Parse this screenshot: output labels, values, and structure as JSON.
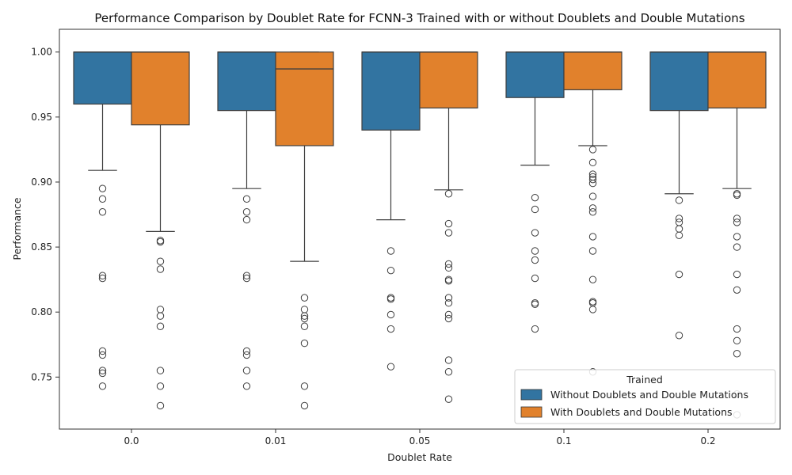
{
  "chart_data": {
    "type": "box",
    "title": "Performance Comparison by Doublet Rate for FCNN-3 Trained with or without Doublets and Double Mutations",
    "xlabel": "Doublet Rate",
    "ylabel": "Performance",
    "categories": [
      "0.0",
      "0.01",
      "0.05",
      "0.1",
      "0.2"
    ],
    "ylim": [
      0.71,
      1.0175
    ],
    "yticks": [
      0.75,
      0.8,
      0.85,
      0.9,
      0.95,
      1.0
    ],
    "ytick_labels": [
      "0.75",
      "0.80",
      "0.85",
      "0.90",
      "0.95",
      "1.00"
    ],
    "grid": false,
    "legend": {
      "title": "Trained",
      "placement": "lower-right",
      "entries": [
        "Without Doublets and Double Mutations",
        "With Doublets and Double Mutations"
      ]
    },
    "series": [
      {
        "name": "Without Doublets and Double Mutations",
        "color": "#3274a1",
        "boxes": [
          {
            "q1": 0.96,
            "median": 1.0,
            "q3": 1.0,
            "whisker_low": 0.909,
            "whisker_high": 1.0,
            "outliers": [
              0.895,
              0.887,
              0.877,
              0.828,
              0.826,
              0.77,
              0.767,
              0.755,
              0.753,
              0.743
            ]
          },
          {
            "q1": 0.955,
            "median": 1.0,
            "q3": 1.0,
            "whisker_low": 0.895,
            "whisker_high": 1.0,
            "outliers": [
              0.887,
              0.877,
              0.871,
              0.828,
              0.826,
              0.77,
              0.767,
              0.755,
              0.743
            ]
          },
          {
            "q1": 0.94,
            "median": 1.0,
            "q3": 1.0,
            "whisker_low": 0.871,
            "whisker_high": 1.0,
            "outliers": [
              0.847,
              0.832,
              0.811,
              0.81,
              0.798,
              0.787,
              0.758
            ]
          },
          {
            "q1": 0.965,
            "median": 1.0,
            "q3": 1.0,
            "whisker_low": 0.913,
            "whisker_high": 1.0,
            "outliers": [
              0.888,
              0.879,
              0.861,
              0.847,
              0.84,
              0.826,
              0.807,
              0.806,
              0.787
            ]
          },
          {
            "q1": 0.955,
            "median": 1.0,
            "q3": 1.0,
            "whisker_low": 0.891,
            "whisker_high": 1.0,
            "outliers": [
              0.886,
              0.872,
              0.869,
              0.864,
              0.859,
              0.829,
              0.782
            ]
          }
        ]
      },
      {
        "name": "With Doublets and Double Mutations",
        "color": "#e1812c",
        "boxes": [
          {
            "q1": 0.944,
            "median": 1.0,
            "q3": 1.0,
            "whisker_low": 0.862,
            "whisker_high": 1.0,
            "outliers": [
              0.855,
              0.854,
              0.839,
              0.833,
              0.802,
              0.797,
              0.789,
              0.755,
              0.743,
              0.728
            ]
          },
          {
            "q1": 0.928,
            "median": 0.987,
            "q3": 1.0,
            "whisker_low": 0.839,
            "whisker_high": 1.0,
            "outliers": [
              0.811,
              0.802,
              0.797,
              0.795,
              0.789,
              0.776,
              0.743,
              0.728
            ]
          },
          {
            "q1": 0.957,
            "median": 1.0,
            "q3": 1.0,
            "whisker_low": 0.894,
            "whisker_high": 1.0,
            "outliers": [
              0.891,
              0.868,
              0.861,
              0.837,
              0.834,
              0.825,
              0.824,
              0.811,
              0.807,
              0.798,
              0.795,
              0.763,
              0.754,
              0.733
            ]
          },
          {
            "q1": 0.971,
            "median": 1.0,
            "q3": 1.0,
            "whisker_low": 0.928,
            "whisker_high": 1.0,
            "outliers": [
              0.925,
              0.915,
              0.906,
              0.904,
              0.902,
              0.899,
              0.889,
              0.88,
              0.877,
              0.858,
              0.847,
              0.825,
              0.808,
              0.807,
              0.802,
              0.754
            ]
          },
          {
            "q1": 0.957,
            "median": 1.0,
            "q3": 1.0,
            "whisker_low": 0.895,
            "whisker_high": 1.0,
            "outliers": [
              0.891,
              0.89,
              0.872,
              0.869,
              0.858,
              0.85,
              0.829,
              0.817,
              0.787,
              0.778,
              0.768,
              0.737,
              0.721
            ]
          }
        ]
      }
    ]
  }
}
